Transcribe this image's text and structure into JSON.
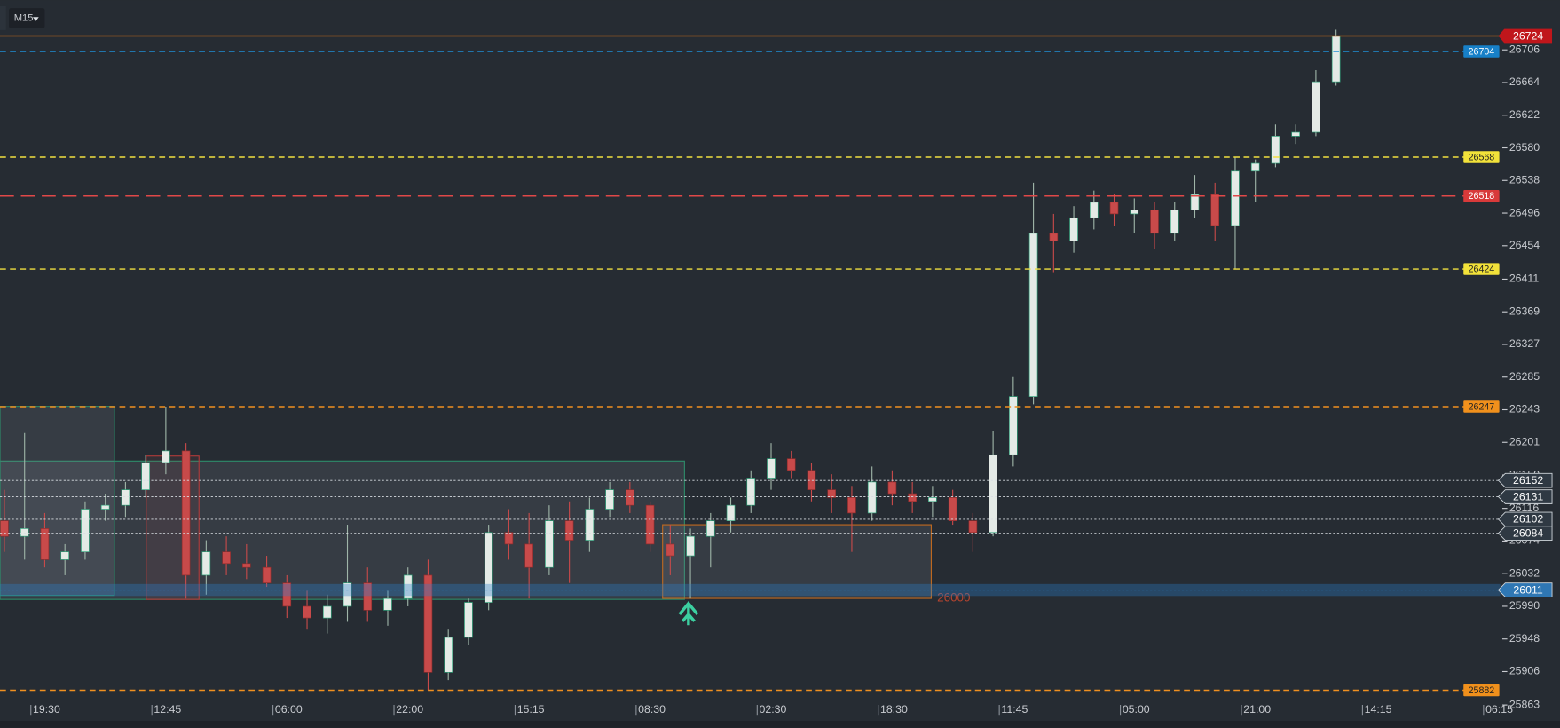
{
  "chart_data": {
    "type": "candlestick",
    "timeframe": "M15",
    "categories": [
      null,
      null,
      "19:30",
      null,
      null,
      null,
      null,
      null,
      "12:45",
      null,
      null,
      null,
      null,
      null,
      "06:00",
      null,
      null,
      null,
      null,
      null,
      "22:00",
      null,
      null,
      null,
      null,
      null,
      "15:15",
      null,
      null,
      null,
      null,
      null,
      "08:30",
      null,
      null,
      null,
      null,
      null,
      "02:30",
      null,
      null,
      null,
      null,
      null,
      "18:30",
      null,
      null,
      null,
      null,
      null,
      "11:45",
      null,
      null,
      null,
      null,
      null,
      "05:00",
      null,
      null,
      null,
      null,
      null,
      "21:00",
      null,
      null,
      null,
      null,
      null,
      "14:15",
      null,
      null,
      null,
      null,
      null,
      "06:15"
    ],
    "open": [
      26100,
      26080,
      26090,
      26050,
      26060,
      26115,
      26120,
      26140,
      26175,
      26190,
      26030,
      26060,
      26045,
      26040,
      26020,
      25990,
      25975,
      25990,
      26020,
      25985,
      26000,
      26030,
      25905,
      25950,
      25995,
      26085,
      26070,
      26040,
      26100,
      26075,
      26115,
      26140,
      26120,
      26070,
      26055,
      26080,
      26100,
      26120,
      26155,
      26180,
      26165,
      26140,
      26130,
      26110,
      26150,
      26135,
      26125,
      26130,
      26100,
      26085,
      26185,
      26260,
      26470,
      26460,
      26490,
      26510,
      26495,
      26500,
      26470,
      26500,
      26520,
      26480,
      26550,
      26560,
      26595,
      26600,
      26665,
      null,
      null,
      null,
      null,
      null,
      null,
      null,
      null
    ],
    "high": [
      26140,
      26213,
      26110,
      26070,
      26125,
      26135,
      26150,
      26185,
      26247,
      26200,
      26075,
      26080,
      26070,
      26055,
      26030,
      26010,
      26005,
      26095,
      26040,
      26010,
      26040,
      26050,
      25960,
      26000,
      26095,
      26115,
      26110,
      26120,
      26125,
      26130,
      26150,
      26150,
      26125,
      26095,
      26090,
      26110,
      26130,
      26165,
      26200,
      26190,
      26175,
      26160,
      26145,
      26170,
      26165,
      26150,
      26145,
      26140,
      26110,
      26215,
      26285,
      26535,
      26495,
      26505,
      26525,
      26520,
      26515,
      26510,
      26510,
      26545,
      26535,
      26568,
      26565,
      26610,
      26610,
      26680,
      26732,
      null,
      null,
      null,
      null,
      null,
      null,
      null,
      null
    ],
    "low": [
      26060,
      26050,
      26040,
      26030,
      26050,
      26100,
      26105,
      26130,
      26160,
      26000,
      26005,
      26030,
      26025,
      26015,
      25975,
      25960,
      25955,
      25970,
      25970,
      25965,
      25990,
      25882,
      25895,
      25940,
      25985,
      26050,
      26000,
      26030,
      26020,
      26060,
      26105,
      26110,
      26060,
      26030,
      26000,
      26040,
      26085,
      26110,
      26140,
      26155,
      26125,
      26110,
      26060,
      26100,
      26120,
      26110,
      26105,
      26095,
      26060,
      26080,
      26170,
      26250,
      26420,
      26445,
      26475,
      26480,
      26470,
      26450,
      26460,
      26490,
      26460,
      26424,
      26510,
      26555,
      26585,
      26595,
      26660,
      null,
      null,
      null,
      null,
      null,
      null,
      null,
      null
    ],
    "close": [
      26080,
      26090,
      26050,
      26060,
      26115,
      26120,
      26140,
      26175,
      26190,
      26030,
      26060,
      26045,
      26040,
      26020,
      25990,
      25975,
      25990,
      26020,
      25985,
      26000,
      26030,
      25905,
      25950,
      25995,
      26085,
      26070,
      26040,
      26100,
      26075,
      26115,
      26140,
      26120,
      26070,
      26055,
      26080,
      26100,
      26120,
      26155,
      26180,
      26165,
      26140,
      26130,
      26110,
      26150,
      26135,
      26125,
      26130,
      26100,
      26085,
      26185,
      26260,
      26470,
      26460,
      26490,
      26510,
      26495,
      26500,
      26470,
      26500,
      26520,
      26480,
      26550,
      26560,
      26595,
      26600,
      26665,
      26724,
      null,
      null,
      null,
      null,
      null,
      null,
      null,
      null
    ],
    "up_color": "#e4eae6",
    "down_color": "#c84a4a",
    "ylim": [
      25858,
      26770
    ],
    "yticks": [
      26706,
      26664,
      26622,
      26580,
      26538,
      26496,
      26454,
      26411,
      26369,
      26327,
      26285,
      26243,
      26201,
      26159,
      26116,
      26074,
      26032,
      25990,
      25948,
      25906,
      25863
    ],
    "levels": [
      {
        "value": 26724,
        "color": "#b5651d",
        "line": "solid",
        "tag": "current",
        "tag_color": "#c0161b",
        "text_color": "#ffffff"
      },
      {
        "value": 26704,
        "color": "#1f8fd6",
        "line": "dashed",
        "tag": "inner",
        "tag_color": "#1780c8",
        "text_color": "#ffffff"
      },
      {
        "value": 26568,
        "color": "#f0e040",
        "line": "dashed",
        "tag": "inner",
        "tag_color": "#f2e23a",
        "text_color": "#222222"
      },
      {
        "value": 26518,
        "color": "#e04848",
        "line": "longdash",
        "tag": "inner",
        "tag_color": "#d83a3a",
        "text_color": "#ffffff"
      },
      {
        "value": 26424,
        "color": "#f0e040",
        "line": "dashed",
        "tag": "inner",
        "tag_color": "#f2e23a",
        "text_color": "#222222"
      },
      {
        "value": 26247,
        "color": "#f09020",
        "line": "dashed",
        "tag": "inner",
        "tag_color": "#f0901c",
        "text_color": "#222222"
      },
      {
        "value": 26152,
        "color": "#d8dde2",
        "line": "dotted",
        "tag": "outer",
        "tag_color": "#2f3943",
        "text_color": "#ffffff"
      },
      {
        "value": 26131,
        "color": "#d8dde2",
        "line": "dotted",
        "tag": "outer",
        "tag_color": "#2f3943",
        "text_color": "#ffffff"
      },
      {
        "value": 26102,
        "color": "#d8dde2",
        "line": "dotted",
        "tag": "outer",
        "tag_color": "#2f3943",
        "text_color": "#ffffff"
      },
      {
        "value": 26084,
        "color": "#d8dde2",
        "line": "dotted",
        "tag": "outer",
        "tag_color": "#2f3943",
        "text_color": "#ffffff"
      },
      {
        "value": 26011,
        "color": "#2a7fc8",
        "line": "band",
        "tag": "outer",
        "tag_color": "#2f77b4",
        "text_color": "#ffffff"
      },
      {
        "value": 25882,
        "color": "#f09020",
        "line": "dashed",
        "tag": "inner",
        "tag_color": "#f0901c",
        "text_color": "#222222"
      }
    ],
    "zone_label": 26000
  }
}
